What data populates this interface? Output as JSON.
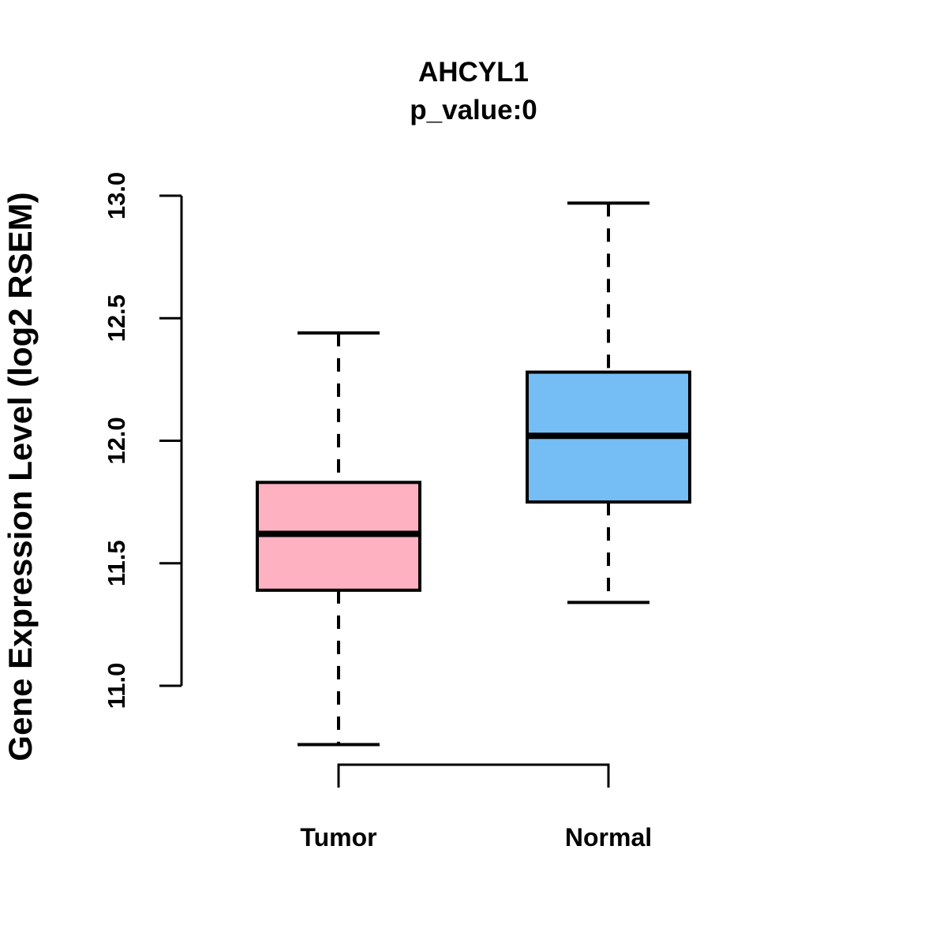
{
  "chart_data": {
    "type": "boxplot",
    "title": "AHCYL1",
    "subtitle": "p_value:0",
    "ylabel": "Gene Expression Level (log2 RSEM)",
    "xlabel": "",
    "categories": [
      "Tumor",
      "Normal"
    ],
    "series": [
      {
        "name": "Tumor",
        "low": 10.76,
        "q1": 11.39,
        "median": 11.62,
        "q3": 11.83,
        "high": 12.44,
        "color": "#FDB1C1"
      },
      {
        "name": "Normal",
        "low": 11.34,
        "q1": 11.75,
        "median": 12.02,
        "q3": 12.28,
        "high": 12.97,
        "color": "#74BEF5"
      }
    ],
    "ylim": [
      11.0,
      13.0
    ],
    "yticks": [
      "11.0",
      "11.5",
      "12.0",
      "12.5",
      "13.0"
    ],
    "grid": false,
    "legend": "none",
    "whisker_style": "dashed",
    "axis_color": "#000000",
    "background_color": "#FFFFFF"
  }
}
